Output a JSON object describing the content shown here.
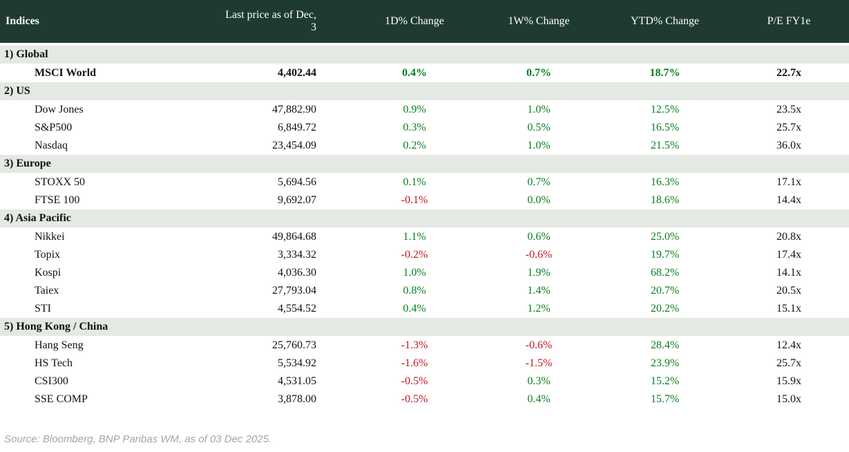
{
  "title": "Indices",
  "columns": [
    "Last price as of Dec, 3",
    "1D% Change",
    "1W% Change",
    "YTD% Change",
    "P/E FY1e"
  ],
  "sections": [
    {
      "label": "1) Global",
      "rows": [
        {
          "name": "MSCI World",
          "price": "4,402.44",
          "chg_1d": "0.4%",
          "chg_1w": "0.7%",
          "chg_ytd": "18.7%",
          "pe": "22.7x",
          "emphasis": true
        }
      ]
    },
    {
      "label": "2) US",
      "rows": [
        {
          "name": "Dow Jones",
          "price": "47,882.90",
          "chg_1d": "0.9%",
          "chg_1w": "1.0%",
          "chg_ytd": "12.5%",
          "pe": "23.5x"
        },
        {
          "name": "S&P500",
          "price": "6,849.72",
          "chg_1d": "0.3%",
          "chg_1w": "0.5%",
          "chg_ytd": "16.5%",
          "pe": "25.7x"
        },
        {
          "name": "Nasdaq",
          "price": "23,454.09",
          "chg_1d": "0.2%",
          "chg_1w": "1.0%",
          "chg_ytd": "21.5%",
          "pe": "36.0x"
        }
      ]
    },
    {
      "label": "3) Europe",
      "rows": [
        {
          "name": "STOXX 50",
          "price": "5,694.56",
          "chg_1d": "0.1%",
          "chg_1w": "0.7%",
          "chg_ytd": "16.3%",
          "pe": "17.1x"
        },
        {
          "name": "FTSE 100",
          "price": "9,692.07",
          "chg_1d": "-0.1%",
          "chg_1w": "0.0%",
          "chg_ytd": "18.6%",
          "pe": "14.4x"
        }
      ]
    },
    {
      "label": "4) Asia Pacific",
      "rows": [
        {
          "name": "Nikkei",
          "price": "49,864.68",
          "chg_1d": "1.1%",
          "chg_1w": "0.6%",
          "chg_ytd": "25.0%",
          "pe": "20.8x"
        },
        {
          "name": "Topix",
          "price": "3,334.32",
          "chg_1d": "-0.2%",
          "chg_1w": "-0.6%",
          "chg_ytd": "19.7%",
          "pe": "17.4x"
        },
        {
          "name": "Kospi",
          "price": "4,036.30",
          "chg_1d": "1.0%",
          "chg_1w": "1.9%",
          "chg_ytd": "68.2%",
          "pe": "14.1x"
        },
        {
          "name": "Taiex",
          "price": "27,793.04",
          "chg_1d": "0.8%",
          "chg_1w": "1.4%",
          "chg_ytd": "20.7%",
          "pe": "20.5x"
        },
        {
          "name": "STI",
          "price": "4,554.52",
          "chg_1d": "0.4%",
          "chg_1w": "1.2%",
          "chg_ytd": "20.2%",
          "pe": "15.1x"
        }
      ]
    },
    {
      "label": "5) Hong Kong / China",
      "rows": [
        {
          "name": "Hang Seng",
          "price": "25,760.73",
          "chg_1d": "-1.3%",
          "chg_1w": "-0.6%",
          "chg_ytd": "28.4%",
          "pe": "12.4x"
        },
        {
          "name": "HS Tech",
          "price": "5,534.92",
          "chg_1d": "-1.6%",
          "chg_1w": "-1.5%",
          "chg_ytd": "23.9%",
          "pe": "25.7x"
        },
        {
          "name": "CSI300",
          "price": "4,531.05",
          "chg_1d": "-0.5%",
          "chg_1w": "0.3%",
          "chg_ytd": "15.2%",
          "pe": "15.9x"
        },
        {
          "name": "SSE COMP",
          "price": "3,878.00",
          "chg_1d": "-0.5%",
          "chg_1w": "0.4%",
          "chg_ytd": "15.7%",
          "pe": "15.0x"
        }
      ]
    }
  ],
  "footer": {
    "source": "Source: Bloomberg, BNP Paribas WM, as of 03 Dec 2025."
  },
  "colors": {
    "header_bg": "#1f3a33",
    "section_bg": "#e4e9e4",
    "positive": "#067f1e",
    "negative": "#c41420",
    "footer_text": "#a0a6ae"
  }
}
